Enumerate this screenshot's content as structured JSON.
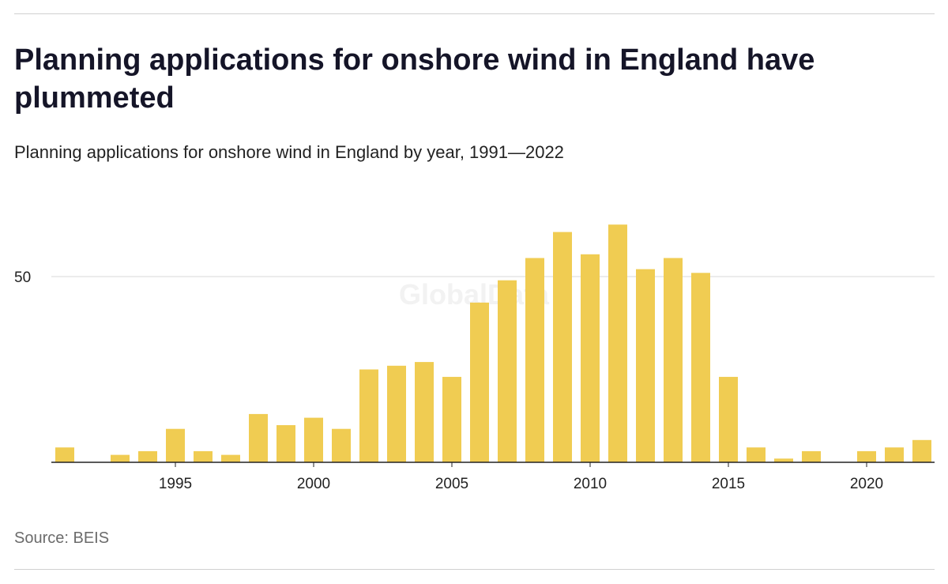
{
  "header": {
    "title": "Planning applications for onshore wind in England have plummeted",
    "subtitle": "Planning applications for onshore wind in England by year, 1991—2022"
  },
  "footer": {
    "source": "Source: BEIS"
  },
  "watermark": "GlobalData",
  "chart_data": {
    "type": "bar",
    "title": "Planning applications for onshore wind in England have plummeted",
    "subtitle": "Planning applications for onshore wind in England by year, 1991—2022",
    "xlabel": "",
    "ylabel": "",
    "ylim": [
      0,
      65
    ],
    "grid": true,
    "bar_color": "#f0cc52",
    "x_ticks": [
      1995,
      2000,
      2005,
      2010,
      2015,
      2020
    ],
    "y_ticks": [
      50
    ],
    "categories": [
      1991,
      1992,
      1993,
      1994,
      1995,
      1996,
      1997,
      1998,
      1999,
      2000,
      2001,
      2002,
      2003,
      2004,
      2005,
      2006,
      2007,
      2008,
      2009,
      2010,
      2011,
      2012,
      2013,
      2014,
      2015,
      2016,
      2017,
      2018,
      2019,
      2020,
      2021,
      2022
    ],
    "values": [
      4,
      0,
      2,
      3,
      9,
      3,
      2,
      13,
      10,
      12,
      9,
      25,
      26,
      27,
      23,
      43,
      49,
      55,
      62,
      56,
      64,
      52,
      55,
      51,
      23,
      4,
      1,
      3,
      0,
      3,
      4,
      6
    ]
  }
}
